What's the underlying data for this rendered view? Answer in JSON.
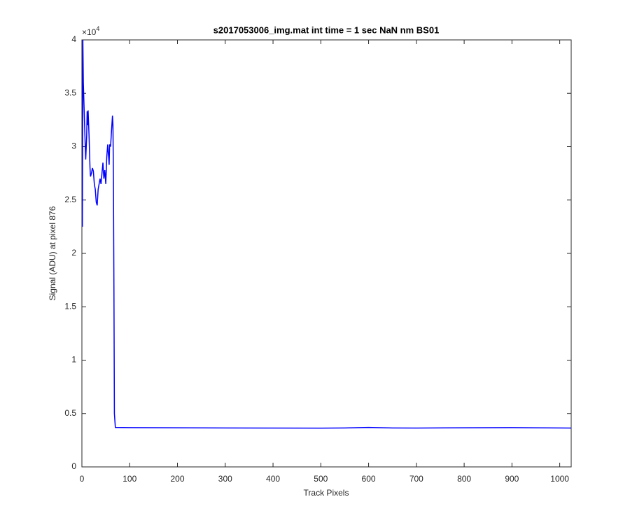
{
  "chart_data": {
    "type": "line",
    "title": "s2017053006_img.mat int time = 1 sec  NaN nm BS01",
    "x_label": "Track Pixels",
    "y_label": "Signal (ADU) at pixel 876",
    "y_multiplier": {
      "base": "×10",
      "exponent": "4"
    },
    "x": [
      1,
      2,
      3,
      5,
      7,
      8,
      10,
      11,
      12,
      13,
      15,
      17,
      18,
      20,
      22,
      24,
      26,
      28,
      30,
      32,
      34,
      36,
      38,
      40,
      42,
      44,
      46,
      48,
      50,
      52,
      54,
      56,
      57,
      58,
      60,
      62,
      64,
      65,
      66,
      67,
      68,
      70,
      100,
      200,
      300,
      400,
      500,
      550,
      600,
      650,
      700,
      800,
      900,
      1000,
      1024
    ],
    "series": [
      {
        "name": "signal",
        "color": "#0000ff",
        "values": [
          22500,
          40000,
          36000,
          33000,
          30000,
          28800,
          31000,
          33300,
          32000,
          33400,
          31000,
          28000,
          27200,
          27500,
          28000,
          27700,
          26500,
          26000,
          24800,
          24500,
          26000,
          26500,
          27000,
          26500,
          27500,
          28500,
          27000,
          27800,
          26500,
          29000,
          30200,
          29000,
          28300,
          30200,
          30000,
          31500,
          32900,
          32000,
          27000,
          17000,
          5000,
          3700,
          3680,
          3660,
          3650,
          3640,
          3630,
          3650,
          3700,
          3650,
          3640,
          3660,
          3680,
          3650,
          3640
        ]
      }
    ],
    "xlim": [
      0,
      1024
    ],
    "xticks": [
      0,
      100,
      200,
      300,
      400,
      500,
      600,
      700,
      800,
      900,
      1000
    ],
    "ylim": [
      0,
      40000
    ],
    "yticks": [
      {
        "value": 0,
        "label": "0"
      },
      {
        "value": 5000,
        "label": "0.5"
      },
      {
        "value": 10000,
        "label": "1"
      },
      {
        "value": 15000,
        "label": "1.5"
      },
      {
        "value": 20000,
        "label": "2"
      },
      {
        "value": 25000,
        "label": "2.5"
      },
      {
        "value": 30000,
        "label": "3"
      },
      {
        "value": 35000,
        "label": "3.5"
      },
      {
        "value": 40000,
        "label": "4"
      }
    ],
    "grid": false
  }
}
